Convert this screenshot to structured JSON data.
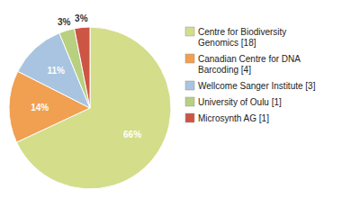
{
  "chart_data": {
    "type": "pie",
    "categories": [
      "Centre for Biodiversity\nGenomics [18]",
      "Canadian Centre for DNA\nBarcoding [4]",
      "Wellcome Sanger Institute [3]",
      "University of Oulu [1]",
      "Microsynth AG [1]"
    ],
    "values": [
      66,
      14,
      11,
      3,
      3
    ],
    "value_labels": [
      "66%",
      "14%",
      "11%",
      "3%",
      "3%"
    ],
    "colors": [
      "#d4dd8a",
      "#f0a050",
      "#a8c4e0",
      "#b8d080",
      "#cc5544"
    ],
    "data_labels": true,
    "legend": "right"
  }
}
